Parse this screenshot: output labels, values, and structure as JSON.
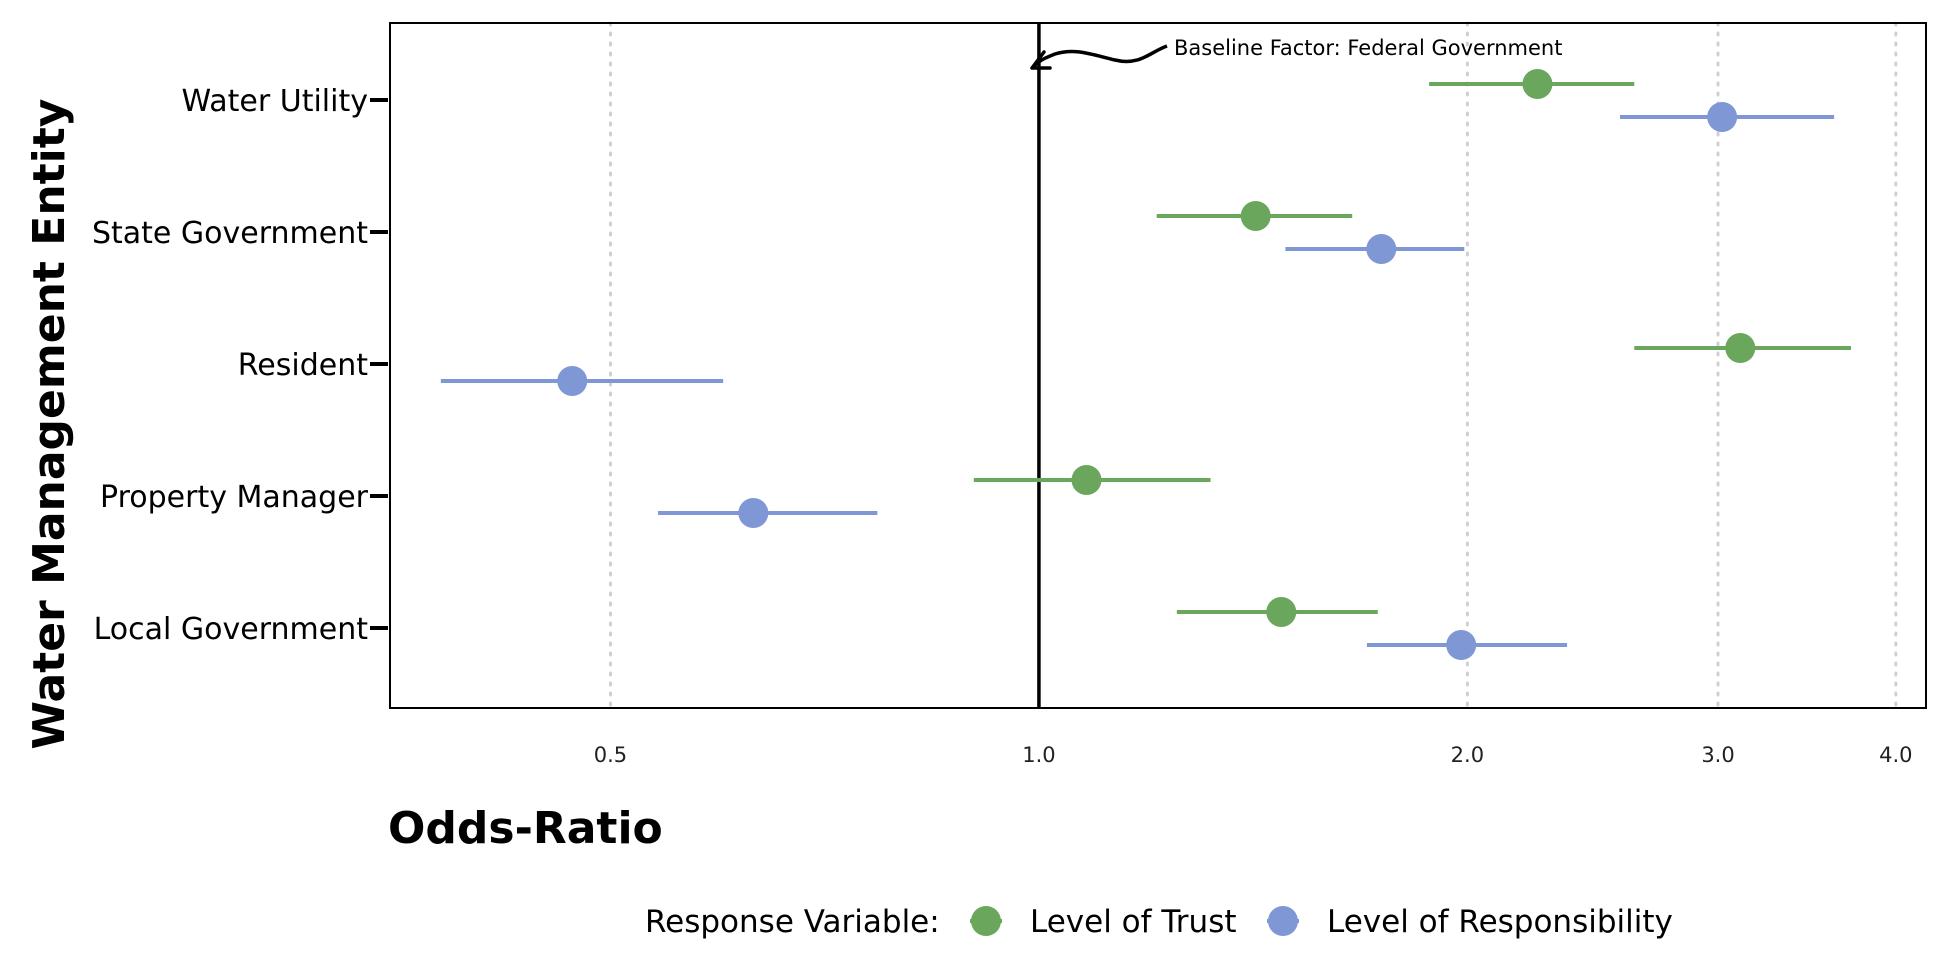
{
  "chart_data": {
    "type": "scatter",
    "subtype": "forest-plot",
    "title": "",
    "xlabel": "Odds-Ratio",
    "ylabel": "Water Management Entity",
    "x_scale": "log",
    "xlim": [
      0.35,
      4.2
    ],
    "x_ticks": [
      0.5,
      1.0,
      2.0,
      3.0,
      4.0
    ],
    "x_tick_labels": [
      "0.5",
      "1.0",
      "2.0",
      "3.0",
      "4.0"
    ],
    "grid": "vertical dotted at x ticks",
    "categories": [
      "Water Utility",
      "State Government",
      "Resident",
      "Property Manager",
      "Local Government"
    ],
    "reference_line": {
      "x": 1.0,
      "label": "Baseline Factor: Federal Government"
    },
    "legend": {
      "title": "Response Variable:",
      "position": "bottom"
    },
    "series": [
      {
        "name": "Level of Trust",
        "color": "#6aa75d",
        "values": [
          2.24,
          1.42,
          3.11,
          1.08,
          1.48
        ],
        "ci_low": [
          1.88,
          1.21,
          2.62,
          0.9,
          1.25
        ],
        "ci_high": [
          2.62,
          1.66,
          3.72,
          1.32,
          1.73
        ]
      },
      {
        "name": "Level of Responsibility",
        "color": "#7f97d4",
        "values": [
          3.02,
          1.74,
          0.47,
          0.63,
          1.98
        ],
        "ci_low": [
          2.56,
          1.49,
          0.38,
          0.54,
          1.7
        ],
        "ci_high": [
          3.62,
          1.99,
          0.6,
          0.77,
          2.35
        ]
      }
    ]
  }
}
